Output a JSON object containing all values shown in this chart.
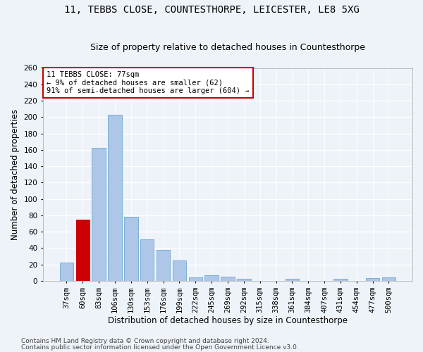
{
  "title1": "11, TEBBS CLOSE, COUNTESTHORPE, LEICESTER, LE8 5XG",
  "title2": "Size of property relative to detached houses in Countesthorpe",
  "xlabel": "Distribution of detached houses by size in Countesthorpe",
  "ylabel": "Number of detached properties",
  "categories": [
    "37sqm",
    "60sqm",
    "83sqm",
    "106sqm",
    "130sqm",
    "153sqm",
    "176sqm",
    "199sqm",
    "222sqm",
    "245sqm",
    "269sqm",
    "292sqm",
    "315sqm",
    "338sqm",
    "361sqm",
    "384sqm",
    "407sqm",
    "431sqm",
    "454sqm",
    "477sqm",
    "500sqm"
  ],
  "values": [
    22,
    75,
    162,
    203,
    78,
    51,
    38,
    25,
    4,
    7,
    5,
    2,
    0,
    0,
    2,
    0,
    0,
    2,
    0,
    3,
    4
  ],
  "bar_color": "#aec6e8",
  "bar_edge_color": "#7aafd4",
  "highlight_bar_index": 1,
  "highlight_color": "#cc0000",
  "annotation_text": "11 TEBBS CLOSE: 77sqm\n← 9% of detached houses are smaller (62)\n91% of semi-detached houses are larger (604) →",
  "annotation_box_color": "#ffffff",
  "annotation_box_edge": "#cc0000",
  "bg_color": "#eef2f9",
  "plot_bg_color": "#eef2f9",
  "grid_color": "#ffffff",
  "ylim": [
    0,
    260
  ],
  "yticks": [
    0,
    20,
    40,
    60,
    80,
    100,
    120,
    140,
    160,
    180,
    200,
    220,
    240,
    260
  ],
  "footer1": "Contains HM Land Registry data © Crown copyright and database right 2024.",
  "footer2": "Contains public sector information licensed under the Open Government Licence v3.0.",
  "title1_fontsize": 10,
  "title2_fontsize": 9,
  "xlabel_fontsize": 8.5,
  "ylabel_fontsize": 8.5,
  "tick_fontsize": 7.5,
  "footer_fontsize": 6.5,
  "ann_fontsize": 7.5
}
